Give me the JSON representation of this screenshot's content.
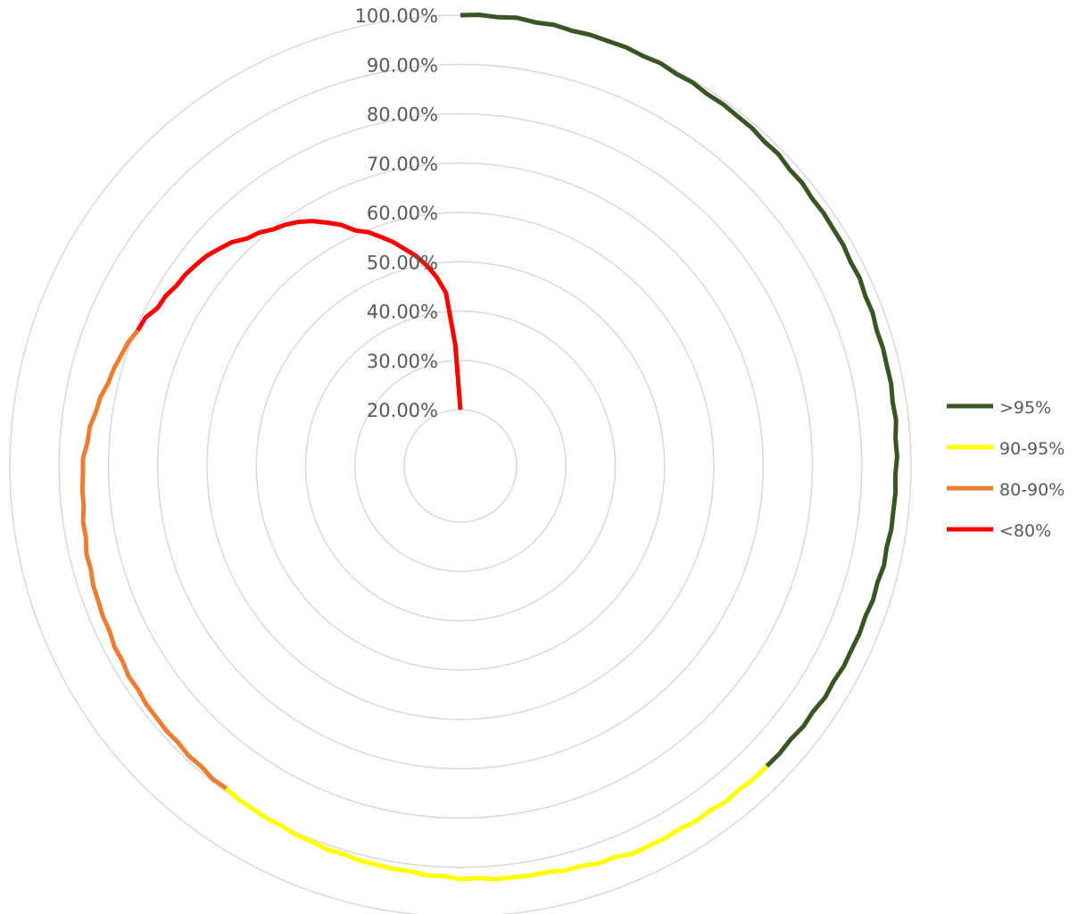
{
  "chart_data": {
    "type": "radar",
    "title": "",
    "radial_axis": {
      "min": 0.2,
      "max": 1.0,
      "tick_labels": [
        "20.00%",
        "30.00%",
        "40.00%",
        "50.00%",
        "60.00%",
        "70.00%",
        "80.00%",
        "90.00%",
        "100.00%"
      ],
      "tick_values": [
        0.2,
        0.3,
        0.4,
        0.5,
        0.6,
        0.7,
        0.8,
        0.9,
        1.0
      ]
    },
    "category_count": 150,
    "grid": true,
    "legend_position": "right",
    "start_value": 0.2,
    "anchor_values": [
      [
        0,
        1.0
      ],
      [
        3,
        1.0
      ],
      [
        6,
        0.999
      ],
      [
        10,
        0.997
      ],
      [
        15,
        0.992
      ],
      [
        20,
        0.986
      ],
      [
        25,
        0.981
      ],
      [
        30,
        0.976
      ],
      [
        37,
        0.971
      ],
      [
        45,
        0.965
      ],
      [
        50,
        0.961
      ],
      [
        56,
        0.956
      ],
      [
        62,
        0.948
      ],
      [
        65,
        0.945
      ],
      [
        66,
        0.94
      ],
      [
        70,
        0.93
      ],
      [
        75,
        0.922
      ],
      [
        80,
        0.912
      ],
      [
        86,
        0.903
      ],
      [
        90,
        0.895
      ],
      [
        95,
        0.888
      ],
      [
        100,
        0.879
      ],
      [
        104,
        0.87
      ],
      [
        108,
        0.861
      ],
      [
        111,
        0.854
      ],
      [
        113,
        0.85
      ],
      [
        116,
        0.835
      ],
      [
        118,
        0.822
      ],
      [
        120,
        0.81
      ],
      [
        123,
        0.79
      ],
      [
        124,
        0.78
      ],
      [
        125,
        0.775
      ],
      [
        128,
        0.76
      ],
      [
        130,
        0.745
      ],
      [
        132,
        0.72
      ],
      [
        134,
        0.7
      ],
      [
        136,
        0.68
      ],
      [
        138,
        0.65
      ],
      [
        140,
        0.61
      ],
      [
        142,
        0.58
      ],
      [
        144,
        0.54
      ],
      [
        146,
        0.5
      ],
      [
        148,
        0.44
      ],
      [
        149,
        0.33
      ],
      [
        150,
        0.2
      ]
    ],
    "series": [
      {
        "name": ">95%",
        "color": "#375623",
        "from": 0,
        "to": 56
      },
      {
        "name": "90-95%",
        "color": "#FFFF00",
        "from": 56,
        "to": 90
      },
      {
        "name": "80-90%",
        "color": "#ED7D31",
        "from": 90,
        "to": 122
      },
      {
        "name": "<80%",
        "color": "#FF0000",
        "from": 122,
        "to": 150
      }
    ],
    "gridline_color": "#d9d9d9"
  }
}
